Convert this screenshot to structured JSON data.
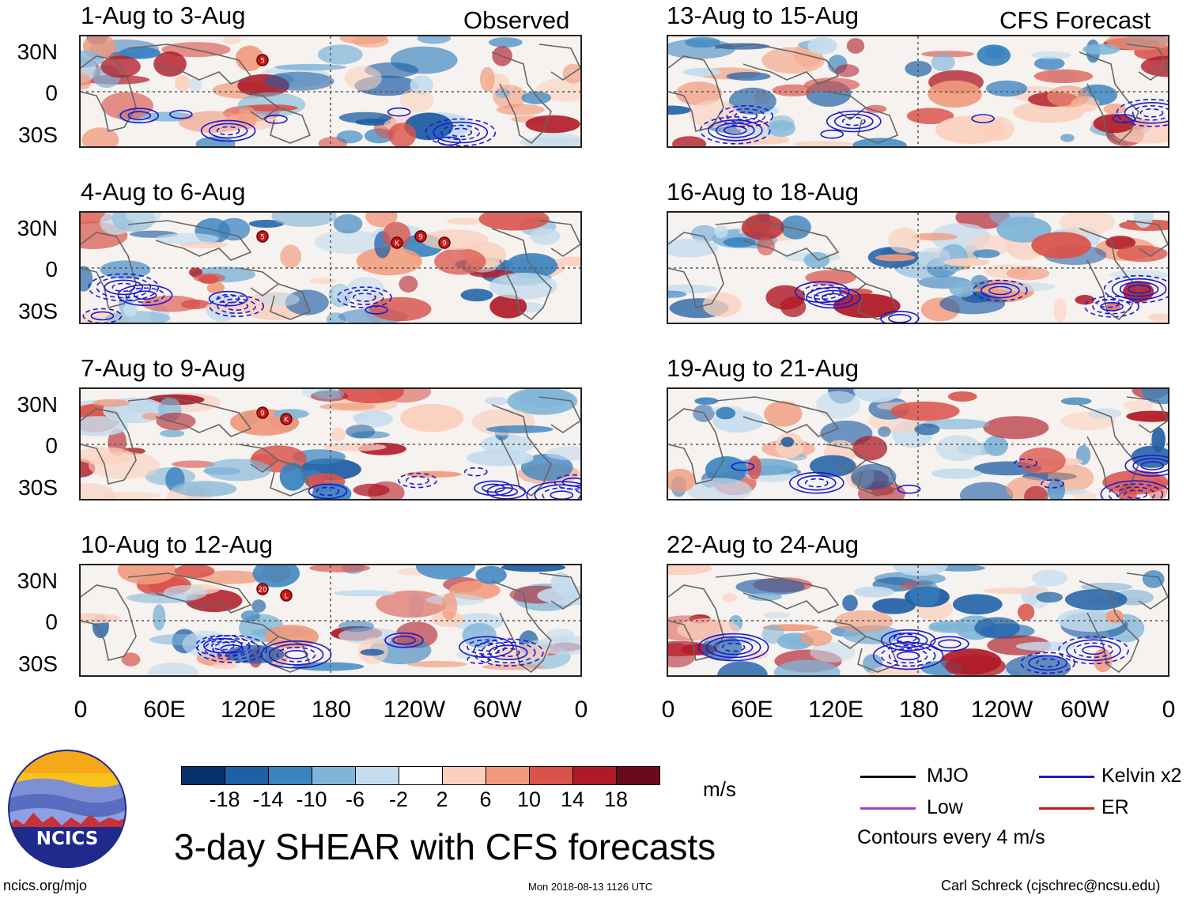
{
  "left_header": "Observed",
  "right_header": "CFS Forecast",
  "panels_left": [
    {
      "title": "1-Aug to 3-Aug"
    },
    {
      "title": "4-Aug to 6-Aug"
    },
    {
      "title": "7-Aug to 9-Aug"
    },
    {
      "title": "10-Aug to 12-Aug"
    }
  ],
  "panels_right": [
    {
      "title": "13-Aug to 15-Aug"
    },
    {
      "title": "16-Aug to 18-Aug"
    },
    {
      "title": "19-Aug to 21-Aug"
    },
    {
      "title": "22-Aug to 24-Aug"
    }
  ],
  "y_ticks": [
    "30N",
    "0",
    "30S"
  ],
  "x_ticks": [
    "0",
    "60E",
    "120E",
    "180",
    "120W",
    "60W",
    "0"
  ],
  "colorbar": {
    "labels": [
      "-18",
      "-14",
      "-10",
      "-6",
      "-2",
      "2",
      "6",
      "10",
      "14",
      "18"
    ],
    "colors": [
      "#08306b",
      "#1f5fa6",
      "#3a84c0",
      "#7fb5d8",
      "#c4dced",
      "#ffffff",
      "#fbd0bd",
      "#f19a7b",
      "#d9534a",
      "#b01a26",
      "#6b0a1a"
    ],
    "units": "m/s"
  },
  "main_title": "3-day SHEAR with CFS forecasts",
  "legend": {
    "items": [
      {
        "label": "MJO",
        "color": "#000000"
      },
      {
        "label": "Low",
        "color": "#a040c8"
      },
      {
        "label": "Kelvin x2",
        "color": "#1a1ad0"
      },
      {
        "label": "ER",
        "color": "#d41515"
      }
    ],
    "note": "Contours every 4 m/s"
  },
  "logo_text": "NCICS",
  "footer": {
    "url": "ncics.org/mjo",
    "timestamp": "Mon 2018-08-13 1126 UTC",
    "author": "Carl Schreck (cjschrec@ncsu.edu)"
  },
  "storm_markers": [
    {
      "panel": 0,
      "label": "5"
    },
    {
      "panel": 1,
      "label": "5"
    },
    {
      "panel": 1,
      "label": "K"
    },
    {
      "panel": 1,
      "label": "9"
    },
    {
      "panel": 1,
      "label": "9"
    },
    {
      "panel": 2,
      "label": "9"
    },
    {
      "panel": 2,
      "label": "K"
    },
    {
      "panel": 3,
      "label": "20"
    },
    {
      "panel": 3,
      "label": "L"
    }
  ]
}
